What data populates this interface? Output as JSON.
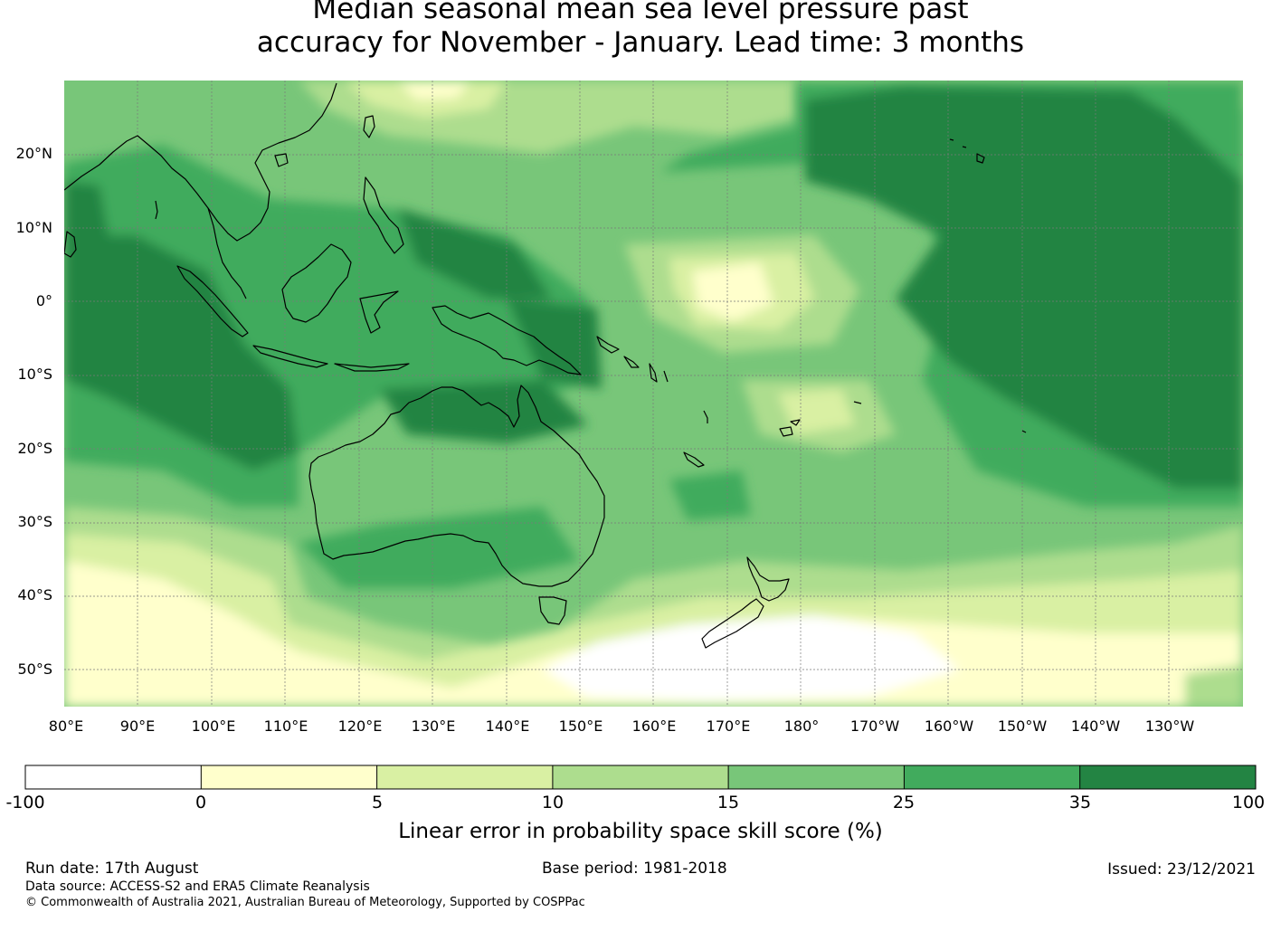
{
  "title": {
    "line1": "Median seasonal mean sea level pressure past",
    "line2": "accuracy for November - January. Lead time: 3 months"
  },
  "map": {
    "lat_labels": [
      "20°N",
      "10°N",
      "0°",
      "10°S",
      "20°S",
      "30°S",
      "40°S",
      "50°S"
    ],
    "lon_labels": [
      "80°E",
      "90°E",
      "100°E",
      "110°E",
      "120°E",
      "130°E",
      "140°E",
      "150°E",
      "160°E",
      "170°E",
      "180°",
      "170°W",
      "160°W",
      "150°W",
      "140°W",
      "130°W"
    ],
    "extent": {
      "lon_min": 80,
      "lon_max": 240,
      "lat_min": -55,
      "lat_max": 30
    },
    "gridlines": true
  },
  "colorbar": {
    "ticks": [
      "-100",
      "0",
      "5",
      "10",
      "15",
      "25",
      "35",
      "100"
    ],
    "colors": [
      "#ffffff",
      "#ffffcc",
      "#d9f0a3",
      "#addd8e",
      "#78c679",
      "#41ab5d",
      "#238443"
    ],
    "label": "Linear error in probability space skill score (%)"
  },
  "footer": {
    "run_date": "Run date: 17th August",
    "base_period": "Base period: 1981-2018",
    "issued": "Issued: 23/12/2021",
    "data_source": "Data source: ACCESS-S2 and ERA5 Climate Reanalysis",
    "copyright": "© Commonwealth of Australia 2021, Australian Bureau of Meteorology, Supported by COSPPac"
  }
}
